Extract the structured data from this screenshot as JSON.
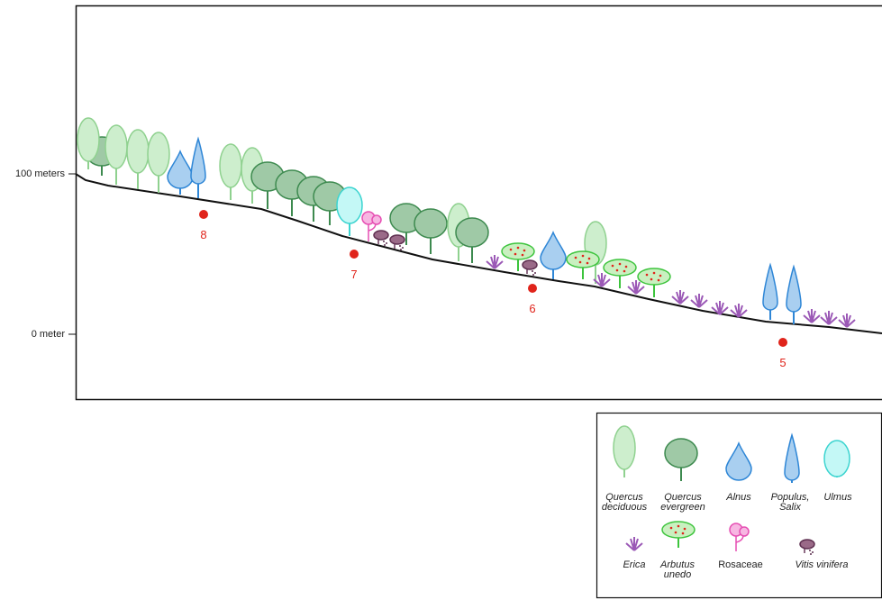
{
  "axis": {
    "labels": [
      "100 meters",
      "0 meter"
    ]
  },
  "sites": [
    8,
    7,
    6,
    5
  ],
  "legend": {
    "items": [
      {
        "lines": [
          "Quercus",
          "deciduous"
        ]
      },
      {
        "lines": [
          "Quercus",
          "evergreen"
        ]
      },
      {
        "lines": [
          "Alnus"
        ]
      },
      {
        "lines": [
          "Populus,",
          "Salix"
        ]
      },
      {
        "lines": [
          "Ulmus"
        ]
      },
      {
        "lines": [
          "Erica"
        ]
      },
      {
        "lines": [
          "Arbutus",
          "unedo"
        ]
      },
      {
        "lines": [
          "Rosaceae"
        ]
      },
      {
        "lines": [
          "Vitis vinifera"
        ]
      }
    ]
  }
}
